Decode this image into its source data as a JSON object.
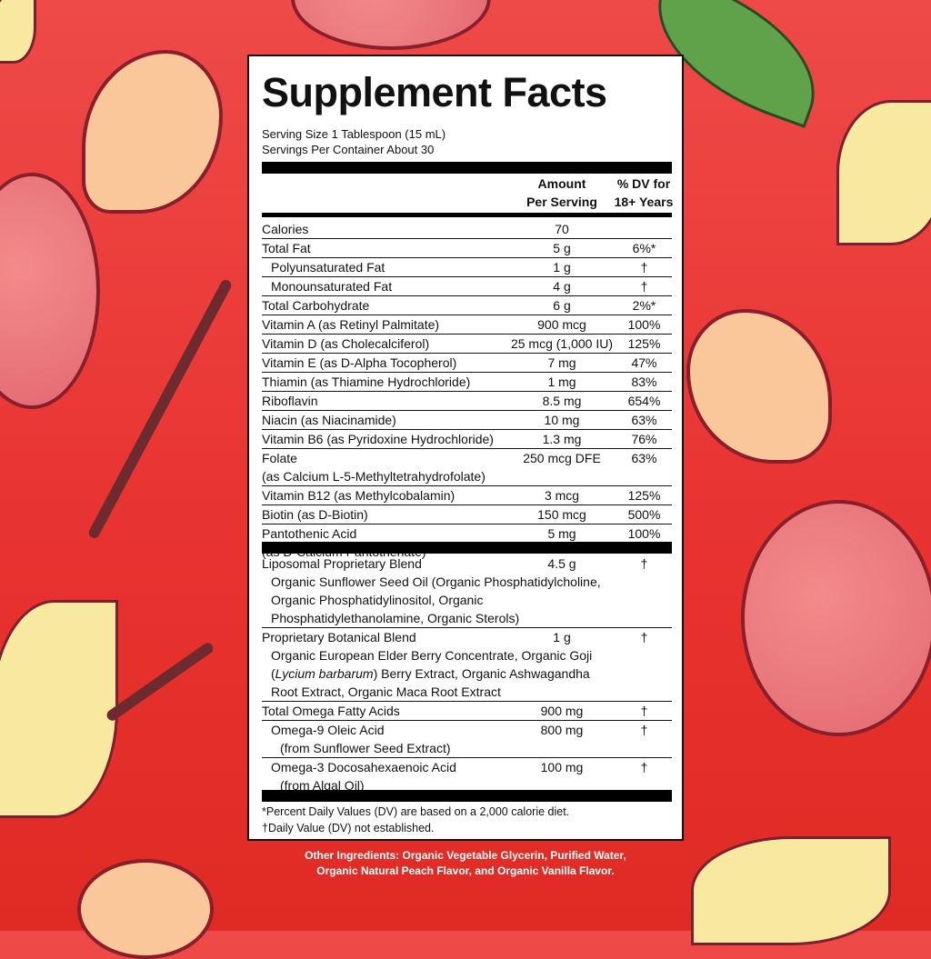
{
  "title": "Supplement Facts",
  "serving_size": "Serving Size 1 Tablespoon (15 mL)",
  "servings_per_container": "Servings Per Container About 30",
  "header": {
    "amount_1": "Amount",
    "amount_2": "Per Serving",
    "dv_1": "% DV for",
    "dv_2": "18+ Years"
  },
  "nutrients": [
    {
      "name": "Calories",
      "amount": "70",
      "dv": ""
    },
    {
      "name": "Total Fat",
      "amount": "5 g",
      "dv": "6%*"
    },
    {
      "name": "Polyunsaturated Fat",
      "amount": "1 g",
      "dv": "†",
      "indent": 1
    },
    {
      "name": "Monounsaturated Fat",
      "amount": "4 g",
      "dv": "†",
      "indent": 1
    },
    {
      "name": "Total Carbohydrate",
      "amount": "6 g",
      "dv": "2%*"
    },
    {
      "name": "Vitamin A (as Retinyl Palmitate)",
      "amount": "900 mcg",
      "dv": "100%"
    },
    {
      "name": "Vitamin D (as Cholecalciferol)",
      "amount": "25 mcg (1,000 IU)",
      "dv": "125%"
    },
    {
      "name": "Vitamin E (as D-Alpha Tocopherol)",
      "amount": "7 mg",
      "dv": "47%"
    },
    {
      "name": "Thiamin (as Thiamine Hydrochloride)",
      "amount": "1 mg",
      "dv": "83%"
    },
    {
      "name": "Riboflavin",
      "amount": "8.5 mg",
      "dv": "654%"
    },
    {
      "name": "Niacin (as Niacinamide)",
      "amount": "10 mg",
      "dv": "63%"
    },
    {
      "name": "Vitamin B6 (as Pyridoxine Hydrochloride)",
      "amount": "1.3 mg",
      "dv": "76%"
    },
    {
      "name": "Folate",
      "sub": "(as Calcium L-5-Methyltetrahydrofolate)",
      "amount": "250 mcg DFE",
      "dv": "63%"
    },
    {
      "name": "Vitamin B12 (as Methylcobalamin)",
      "amount": "3 mcg",
      "dv": "125%"
    },
    {
      "name": "Biotin (as D-Biotin)",
      "amount": "150 mcg",
      "dv": "500%"
    },
    {
      "name": "Pantothenic Acid",
      "sub": "(as D-Calcium Pantothenate)",
      "amount": "5 mg",
      "dv": "100%"
    }
  ],
  "blends": [
    {
      "name": "Liposomal Proprietary Blend",
      "amount": "4.5 g",
      "dv": "†",
      "desc": [
        "Organic Sunflower Seed Oil (Organic Phosphatidylcholine,",
        "Organic Phosphatidylinositol, Organic",
        "Phosphatidylethanolamine, Organic Sterols)"
      ]
    },
    {
      "name": "Proprietary Botanical Blend",
      "amount": "1 g",
      "dv": "†",
      "desc": [
        "Organic European Elder Berry Concentrate, Organic Goji",
        "(Lycium barbarum) Berry Extract, Organic Ashwagandha",
        "Root Extract, Organic Maca Root Extract"
      ]
    },
    {
      "name": "Total Omega Fatty Acids",
      "amount": "900 mg",
      "dv": "†",
      "desc": []
    },
    {
      "name": "Omega-9 Oleic Acid",
      "amount": "800 mg",
      "dv": "†",
      "indent": 1,
      "desc": [
        "(from Sunflower Seed Extract)"
      ]
    },
    {
      "name": "Omega-3 Docosahexaenoic Acid",
      "amount": "100 mg",
      "dv": "†",
      "indent": 1,
      "desc": [
        "(from Algal Oil)"
      ]
    }
  ],
  "footnote_1": "*Percent Daily Values (DV) are based on a 2,000 calorie diet.",
  "footnote_2": "†Daily Value (DV) not established.",
  "other_ingredients_1": "Other Ingredients: Organic Vegetable Glycerin, Purified Water,",
  "other_ingredients_2": "Organic Natural Peach Flavor, and Organic Vanilla Flavor.",
  "colors": {
    "background": "#e8322f",
    "label": "#ffffff",
    "text": "#111111"
  }
}
